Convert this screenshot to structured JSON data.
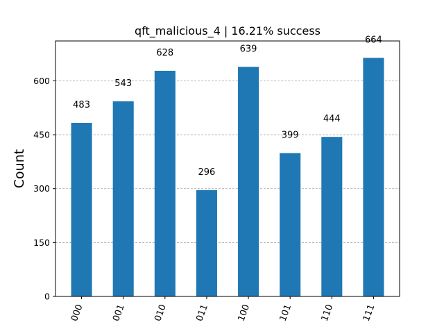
{
  "chart_data": {
    "type": "bar",
    "title": "qft_malicious_4 | 16.21% success",
    "xlabel": "",
    "ylabel": "Count",
    "categories": [
      "000",
      "001",
      "010",
      "011",
      "100",
      "101",
      "110",
      "111"
    ],
    "values": [
      483,
      543,
      628,
      296,
      639,
      399,
      444,
      664
    ],
    "ylim": [
      0,
      711
    ],
    "yticks": [
      0,
      150,
      300,
      450,
      600
    ],
    "grid": "y-dashed",
    "bar_color": "#1f77b4",
    "grid_color": "#b0b0b0"
  }
}
